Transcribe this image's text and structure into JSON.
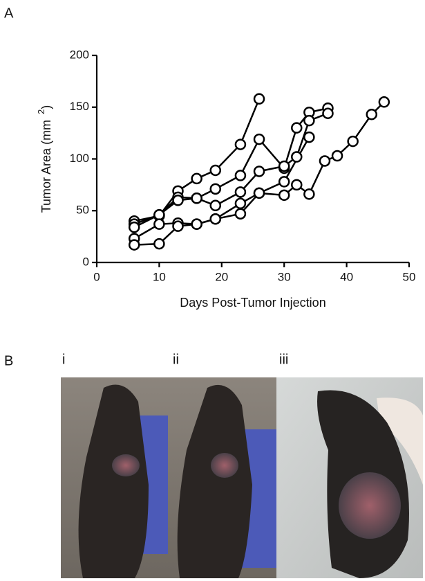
{
  "panel_labels": [
    "A",
    "B"
  ],
  "chart_data": {
    "type": "line",
    "xlabel": "Days Post-Tumor Injection",
    "ylabel": "Tumor Area (mm",
    "ylabel_sup": "2",
    "ylabel_end": ")",
    "xlim": [
      0,
      50
    ],
    "xticks": [
      0,
      10,
      20,
      30,
      40,
      50
    ],
    "ylim": [
      0,
      200
    ],
    "yticks": [
      0,
      50,
      100,
      150,
      200
    ],
    "color": "#000000",
    "marker_fill": "#ffffff",
    "series": [
      {
        "x": [
          6,
          10,
          13,
          16,
          19,
          23,
          26
        ],
        "values": [
          40,
          45,
          69,
          81,
          89,
          114,
          158
        ]
      },
      {
        "x": [
          6,
          10,
          13,
          16,
          19,
          23,
          26,
          30,
          32,
          34,
          37
        ],
        "values": [
          37,
          46,
          63,
          62,
          71,
          84,
          119,
          91,
          130,
          145,
          149
        ]
      },
      {
        "x": [
          6,
          10,
          13,
          16,
          19,
          23,
          26,
          30,
          32,
          34,
          37
        ],
        "values": [
          34,
          46,
          60,
          62,
          55,
          68,
          88,
          93,
          102,
          137,
          144
        ]
      },
      {
        "x": [
          6,
          10,
          13,
          16,
          19,
          23,
          26,
          30,
          34
        ],
        "values": [
          23,
          37,
          38,
          37,
          42,
          57,
          67,
          78,
          121
        ]
      },
      {
        "x": [
          6,
          10,
          13,
          16,
          19,
          23,
          26,
          30,
          32,
          34,
          36.5,
          38.5,
          41,
          44,
          46
        ],
        "values": [
          17,
          18,
          35,
          37,
          42,
          47,
          67,
          65,
          75,
          66,
          98,
          103,
          117,
          143,
          155
        ]
      }
    ]
  },
  "photo_labels": [
    "i",
    "ii",
    "iii"
  ]
}
